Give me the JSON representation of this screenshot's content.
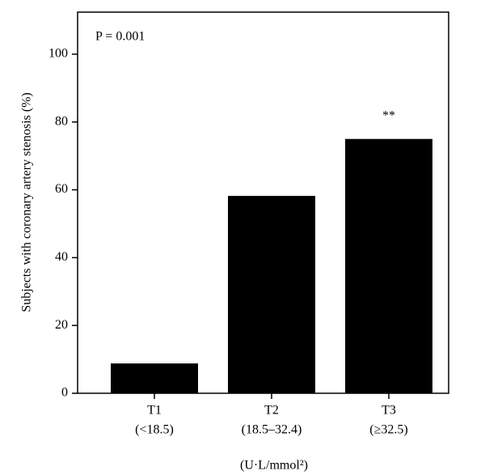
{
  "chart_data": {
    "type": "bar",
    "y_label": "Subjects with coronary artery stenosis (%)",
    "x_label": "(U·L/mmol²)",
    "annotation": "P = 0.001",
    "categories": [
      "T1",
      "T2",
      "T3"
    ],
    "category_ranges": [
      "(<18.5)",
      "(18.5–32.4)",
      "(≥32.5)"
    ],
    "values": [
      8.8,
      58.2,
      75
    ],
    "value_labels": [
      null,
      null,
      "**"
    ],
    "color": "#000000",
    "ylim": [
      0,
      112.4
    ],
    "yticks": [
      0,
      20,
      40,
      60,
      80,
      100
    ]
  }
}
